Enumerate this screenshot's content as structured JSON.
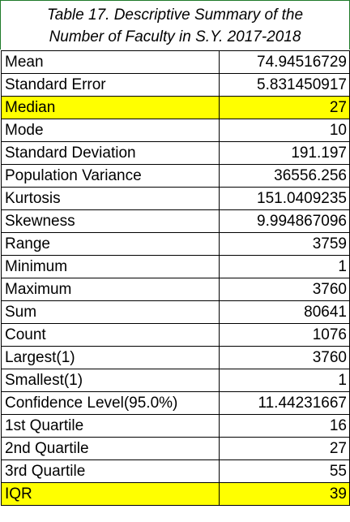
{
  "caption": {
    "line1": "Table 17. Descriptive Summary of the",
    "line2": "Number of Faculty in S.Y. 2017-2018"
  },
  "colors": {
    "highlight": "#ffff00",
    "caption_border": "#1f7a2a"
  },
  "rows": [
    {
      "label": "Mean",
      "value": "74.94516729",
      "highlight": false
    },
    {
      "label": "Standard Error",
      "value": "5.831450917",
      "highlight": false
    },
    {
      "label": "Median",
      "value": "27",
      "highlight": true
    },
    {
      "label": "Mode",
      "value": "10",
      "highlight": false
    },
    {
      "label": "Standard Deviation",
      "value": "191.197",
      "highlight": false
    },
    {
      "label": "Population Variance",
      "value": "36556.256",
      "highlight": false
    },
    {
      "label": "Kurtosis",
      "value": "151.0409235",
      "highlight": false
    },
    {
      "label": "Skewness",
      "value": "9.994867096",
      "highlight": false
    },
    {
      "label": "Range",
      "value": "3759",
      "highlight": false
    },
    {
      "label": "Minimum",
      "value": "1",
      "highlight": false
    },
    {
      "label": "Maximum",
      "value": "3760",
      "highlight": false
    },
    {
      "label": "Sum",
      "value": "80641",
      "highlight": false
    },
    {
      "label": "Count",
      "value": "1076",
      "highlight": false
    },
    {
      "label": "Largest(1)",
      "value": "3760",
      "highlight": false
    },
    {
      "label": "Smallest(1)",
      "value": "1",
      "highlight": false
    },
    {
      "label": "Confidence Level(95.0%)",
      "value": "11.44231667",
      "highlight": false
    },
    {
      "label": "1st Quartile",
      "value": "16",
      "highlight": false
    },
    {
      "label": "2nd Quartile",
      "value": "27",
      "highlight": false
    },
    {
      "label": "3rd Quartile",
      "value": "55",
      "highlight": false
    },
    {
      "label": "IQR",
      "value": "39",
      "highlight": true
    }
  ]
}
